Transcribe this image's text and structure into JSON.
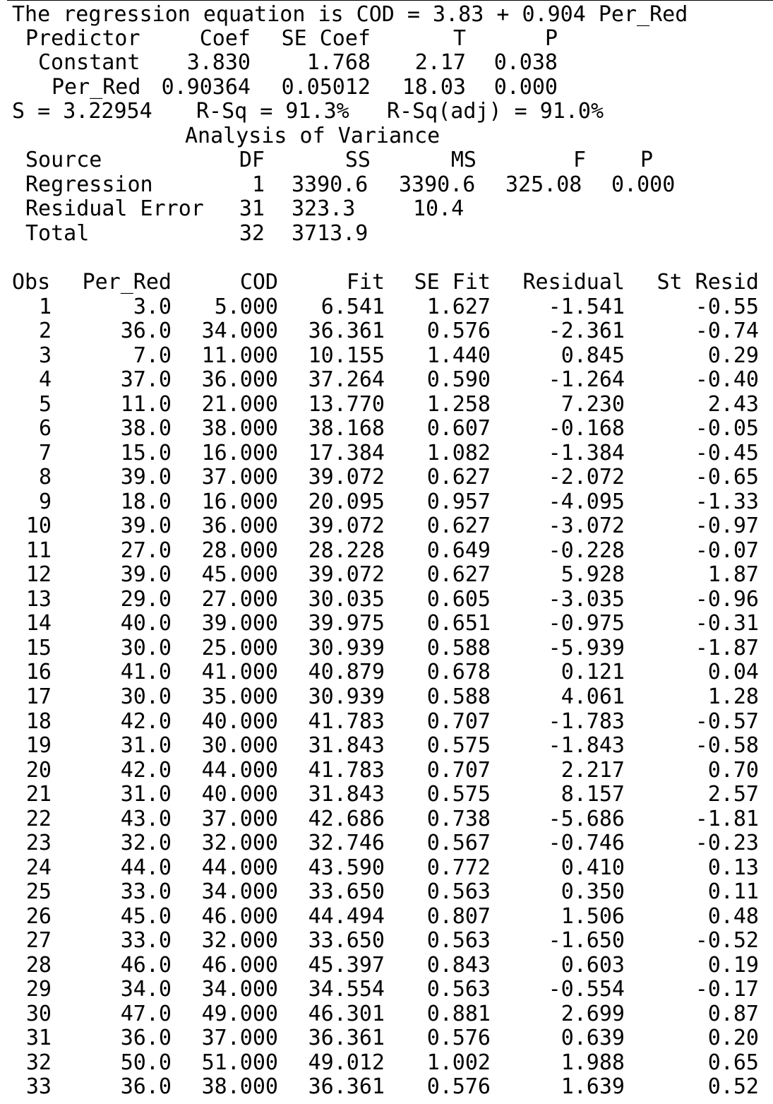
{
  "header": {
    "equation": "The regression equation is COD = 3.83 + 0.904 Per_Red"
  },
  "coefficients": {
    "columns": [
      "Predictor",
      "Coef",
      "SE Coef",
      "T",
      "P"
    ],
    "rows": [
      {
        "predictor": "Constant",
        "coef": "3.830",
        "se_coef": "1.768",
        "t": "2.17",
        "p": "0.038"
      },
      {
        "predictor": "Per_Red",
        "coef": "0.90364",
        "se_coef": "0.05012",
        "t": "18.03",
        "p": "0.000"
      }
    ]
  },
  "fit_summary": {
    "s": "S = 3.22954",
    "rsq": "R-Sq = 91.3%",
    "rsq_adj": "R-Sq(adj) = 91.0%"
  },
  "anova": {
    "title": "Analysis of Variance",
    "columns": [
      "Source",
      "DF",
      "SS",
      "MS",
      "F",
      "P"
    ],
    "rows": [
      {
        "source": "Regression",
        "df": "1",
        "ss": "3390.6",
        "ms": "3390.6",
        "f": "325.08",
        "p": "0.000"
      },
      {
        "source": "Residual Error",
        "df": "31",
        "ss": "323.3",
        "ms": "10.4",
        "f": "",
        "p": ""
      },
      {
        "source": "Total",
        "df": "32",
        "ss": "3713.9",
        "ms": "",
        "f": "",
        "p": ""
      }
    ]
  },
  "observations": {
    "columns": [
      "Obs",
      "Per_Red",
      "COD",
      "Fit",
      "SE Fit",
      "Residual",
      "St Resid"
    ],
    "rows": [
      [
        "1",
        "3.0",
        "5.000",
        "6.541",
        "1.627",
        "-1.541",
        "-0.55"
      ],
      [
        "2",
        "36.0",
        "34.000",
        "36.361",
        "0.576",
        "-2.361",
        "-0.74"
      ],
      [
        "3",
        "7.0",
        "11.000",
        "10.155",
        "1.440",
        "0.845",
        "0.29"
      ],
      [
        "4",
        "37.0",
        "36.000",
        "37.264",
        "0.590",
        "-1.264",
        "-0.40"
      ],
      [
        "5",
        "11.0",
        "21.000",
        "13.770",
        "1.258",
        "7.230",
        "2.43"
      ],
      [
        "6",
        "38.0",
        "38.000",
        "38.168",
        "0.607",
        "-0.168",
        "-0.05"
      ],
      [
        "7",
        "15.0",
        "16.000",
        "17.384",
        "1.082",
        "-1.384",
        "-0.45"
      ],
      [
        "8",
        "39.0",
        "37.000",
        "39.072",
        "0.627",
        "-2.072",
        "-0.65"
      ],
      [
        "9",
        "18.0",
        "16.000",
        "20.095",
        "0.957",
        "-4.095",
        "-1.33"
      ],
      [
        "10",
        "39.0",
        "36.000",
        "39.072",
        "0.627",
        "-3.072",
        "-0.97"
      ],
      [
        "11",
        "27.0",
        "28.000",
        "28.228",
        "0.649",
        "-0.228",
        "-0.07"
      ],
      [
        "12",
        "39.0",
        "45.000",
        "39.072",
        "0.627",
        "5.928",
        "1.87"
      ],
      [
        "13",
        "29.0",
        "27.000",
        "30.035",
        "0.605",
        "-3.035",
        "-0.96"
      ],
      [
        "14",
        "40.0",
        "39.000",
        "39.975",
        "0.651",
        "-0.975",
        "-0.31"
      ],
      [
        "15",
        "30.0",
        "25.000",
        "30.939",
        "0.588",
        "-5.939",
        "-1.87"
      ],
      [
        "16",
        "41.0",
        "41.000",
        "40.879",
        "0.678",
        "0.121",
        "0.04"
      ],
      [
        "17",
        "30.0",
        "35.000",
        "30.939",
        "0.588",
        "4.061",
        "1.28"
      ],
      [
        "18",
        "42.0",
        "40.000",
        "41.783",
        "0.707",
        "-1.783",
        "-0.57"
      ],
      [
        "19",
        "31.0",
        "30.000",
        "31.843",
        "0.575",
        "-1.843",
        "-0.58"
      ],
      [
        "20",
        "42.0",
        "44.000",
        "41.783",
        "0.707",
        "2.217",
        "0.70"
      ],
      [
        "21",
        "31.0",
        "40.000",
        "31.843",
        "0.575",
        "8.157",
        "2.57"
      ],
      [
        "22",
        "43.0",
        "37.000",
        "42.686",
        "0.738",
        "-5.686",
        "-1.81"
      ],
      [
        "23",
        "32.0",
        "32.000",
        "32.746",
        "0.567",
        "-0.746",
        "-0.23"
      ],
      [
        "24",
        "44.0",
        "44.000",
        "43.590",
        "0.772",
        "0.410",
        "0.13"
      ],
      [
        "25",
        "33.0",
        "34.000",
        "33.650",
        "0.563",
        "0.350",
        "0.11"
      ],
      [
        "26",
        "45.0",
        "46.000",
        "44.494",
        "0.807",
        "1.506",
        "0.48"
      ],
      [
        "27",
        "33.0",
        "32.000",
        "33.650",
        "0.563",
        "-1.650",
        "-0.52"
      ],
      [
        "28",
        "46.0",
        "46.000",
        "45.397",
        "0.843",
        "0.603",
        "0.19"
      ],
      [
        "29",
        "34.0",
        "34.000",
        "34.554",
        "0.563",
        "-0.554",
        "-0.17"
      ],
      [
        "30",
        "47.0",
        "49.000",
        "46.301",
        "0.881",
        "2.699",
        "0.87"
      ],
      [
        "31",
        "36.0",
        "37.000",
        "36.361",
        "0.576",
        "0.639",
        "0.20"
      ],
      [
        "32",
        "50.0",
        "51.000",
        "49.012",
        "1.002",
        "1.988",
        "0.65"
      ],
      [
        "33",
        "36.0",
        "38.000",
        "36.361",
        "0.576",
        "1.639",
        "0.52"
      ]
    ]
  }
}
